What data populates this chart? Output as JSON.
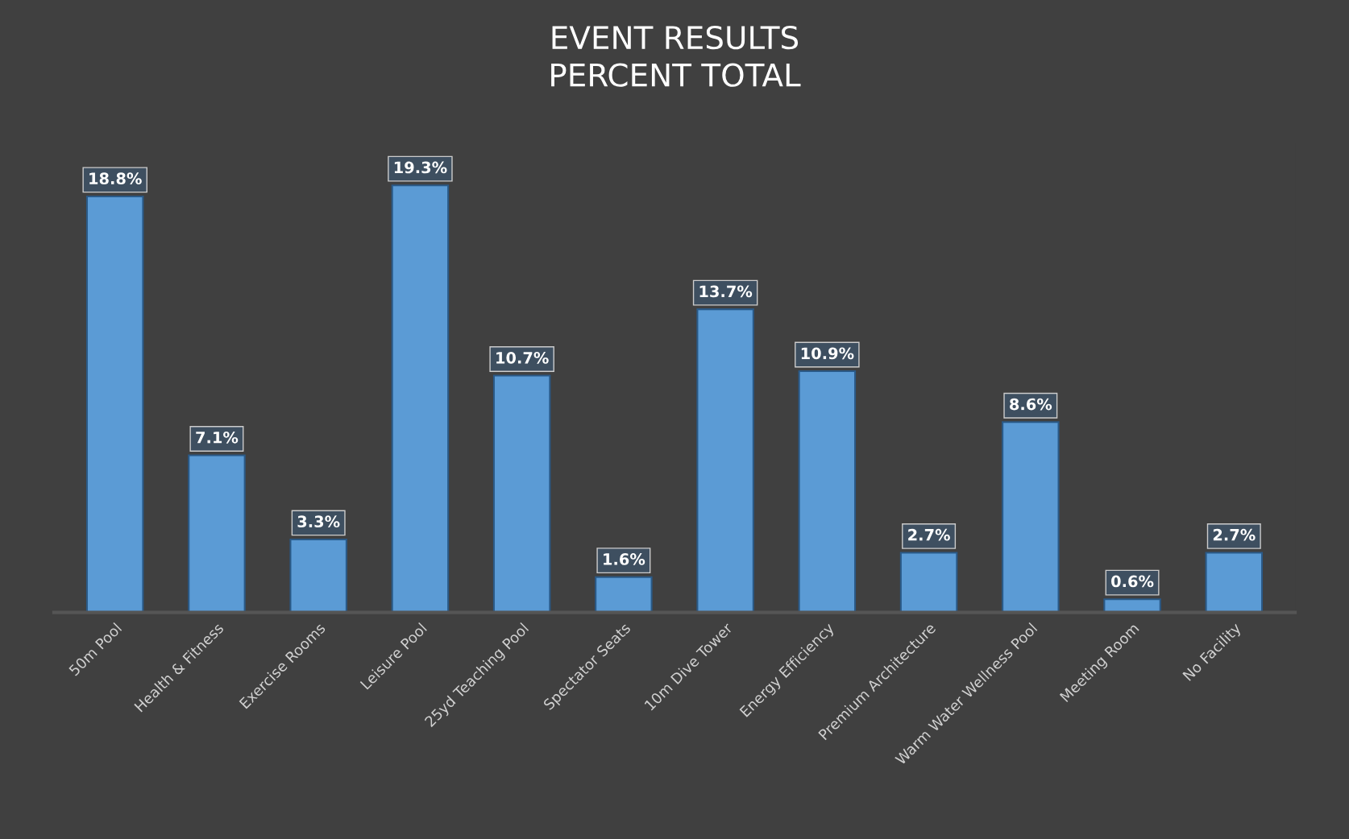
{
  "chart_data": {
    "type": "bar",
    "title": "EVENT RESULTS\nPERCENT TOTAL",
    "categories": [
      "50m Pool",
      "Health & Fitness",
      "Exercise Rooms",
      "Leisure Pool",
      "25yd Teaching Pool",
      "Spectator Seats",
      "10m Dive Tower",
      "Energy Efficiency",
      "Premium Architecture",
      "Warm Water Wellness Pool",
      "Meeting Room",
      "No Facility"
    ],
    "values": [
      18.8,
      7.1,
      3.3,
      19.3,
      10.7,
      1.6,
      13.7,
      10.9,
      2.7,
      8.6,
      0.6,
      2.7
    ],
    "value_labels": [
      "18.8%",
      "7.1%",
      "3.3%",
      "19.3%",
      "10.7%",
      "1.6%",
      "13.7%",
      "10.9%",
      "2.7%",
      "8.6%",
      "0.6%",
      "2.7%"
    ],
    "color": "#5b9bd5",
    "grid": false,
    "tick_labels": "x"
  }
}
